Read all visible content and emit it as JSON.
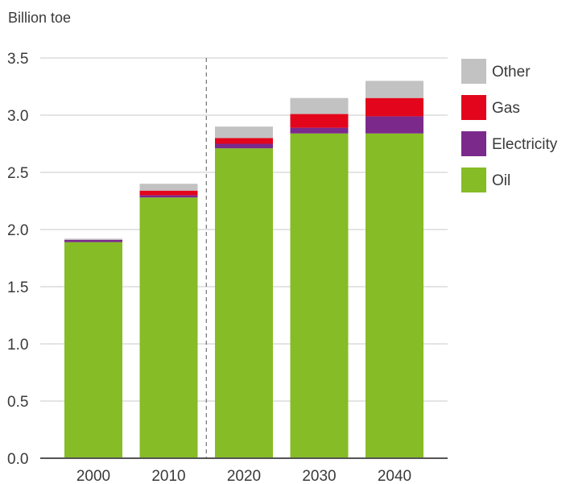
{
  "chart_data": {
    "type": "bar",
    "stacked": true,
    "ylabel": "Billion toe",
    "categories": [
      "2000",
      "2010",
      "2020",
      "2030",
      "2040"
    ],
    "ylim": [
      0,
      3.5
    ],
    "yticks": [
      "0.0",
      "0.5",
      "1.0",
      "1.5",
      "2.0",
      "2.5",
      "3.0",
      "3.5"
    ],
    "grid": true,
    "divider_after_category": "2010",
    "legend_position": "right",
    "series": [
      {
        "name": "Oil",
        "color": "#86bc25",
        "values": [
          1.89,
          2.28,
          2.71,
          2.84,
          2.84
        ]
      },
      {
        "name": "Electricity",
        "color": "#7b2a8c",
        "values": [
          0.02,
          0.02,
          0.04,
          0.05,
          0.15
        ]
      },
      {
        "name": "Gas",
        "color": "#e3051b",
        "values": [
          0.0,
          0.04,
          0.05,
          0.12,
          0.16
        ]
      },
      {
        "name": "Other",
        "color": "#c2c2c2",
        "values": [
          0.01,
          0.06,
          0.1,
          0.14,
          0.15
        ]
      }
    ],
    "legend_order": [
      "Other",
      "Gas",
      "Electricity",
      "Oil"
    ]
  }
}
